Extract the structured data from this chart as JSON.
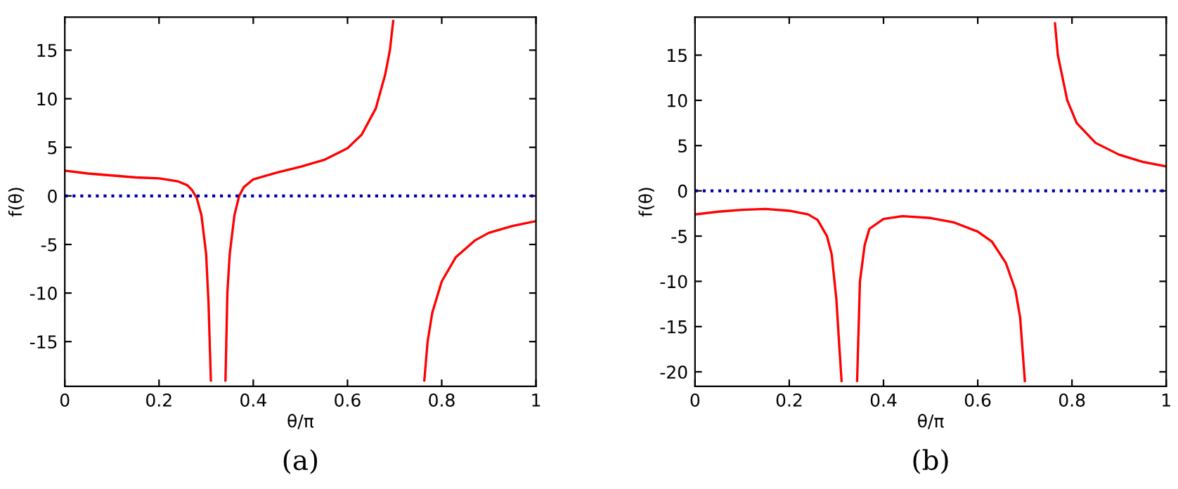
{
  "chart_data": [
    {
      "type": "line",
      "xlabel": "θ/π",
      "ylabel": "f(θ)",
      "annotations": [
        "(a)"
      ],
      "xlim": [
        0,
        1
      ],
      "ylim": [
        -19.6,
        18.4
      ],
      "xticks": [
        0,
        0.2,
        0.4,
        0.6,
        0.8,
        1
      ],
      "yticks": [
        -15,
        -10,
        -5,
        0,
        5,
        10,
        15
      ],
      "grid": false,
      "legend": false,
      "line_style": "solid",
      "ref_lines": [
        {
          "axis": "y",
          "value": 0,
          "color": "#0000aa",
          "line_style": "dotted"
        }
      ],
      "series": [
        {
          "color": "#ff0000",
          "x": [
            0,
            0.05,
            0.1,
            0.15,
            0.2,
            0.24,
            0.26,
            0.27,
            0.28,
            0.29,
            0.3,
            0.305,
            0.31
          ],
          "values": [
            2.6,
            2.3,
            2.1,
            1.9,
            1.8,
            1.5,
            1.1,
            0.6,
            -0.2,
            -2,
            -6,
            -11,
            -19
          ]
        },
        {
          "color": "#ff0000",
          "x": [
            0.341,
            0.345,
            0.35,
            0.36,
            0.37,
            0.38,
            0.4,
            0.45,
            0.5,
            0.55,
            0.6,
            0.63,
            0.66,
            0.68,
            0.69,
            0.697
          ],
          "values": [
            -19,
            -10,
            -6,
            -2,
            0,
            0.9,
            1.7,
            2.4,
            3.0,
            3.7,
            4.9,
            6.3,
            9,
            12.5,
            15,
            18
          ]
        },
        {
          "color": "#ff0000",
          "x": [
            0.763,
            0.77,
            0.78,
            0.8,
            0.83,
            0.87,
            0.9,
            0.95,
            1
          ],
          "values": [
            -19,
            -15,
            -12,
            -8.8,
            -6.3,
            -4.6,
            -3.8,
            -3.1,
            -2.6
          ]
        }
      ]
    },
    {
      "type": "line",
      "xlabel": "θ/π",
      "ylabel": "f(θ)",
      "annotations": [
        "(b)"
      ],
      "xlim": [
        0,
        1
      ],
      "ylim": [
        -21.6,
        19.2
      ],
      "xticks": [
        0,
        0.2,
        0.4,
        0.6,
        0.8,
        1
      ],
      "yticks": [
        -20,
        -15,
        -10,
        -5,
        0,
        5,
        10,
        15
      ],
      "grid": false,
      "legend": false,
      "line_style": "solid",
      "ref_lines": [
        {
          "axis": "y",
          "value": 0,
          "color": "#0000aa",
          "line_style": "dotted"
        }
      ],
      "series": [
        {
          "color": "#ff0000",
          "x": [
            0,
            0.05,
            0.1,
            0.15,
            0.2,
            0.24,
            0.26,
            0.28,
            0.29,
            0.3,
            0.306,
            0.311
          ],
          "values": [
            -2.6,
            -2.3,
            -2.1,
            -2.0,
            -2.2,
            -2.6,
            -3.2,
            -5,
            -7,
            -12,
            -17,
            -21
          ]
        },
        {
          "color": "#ff0000",
          "x": [
            0.344,
            0.35,
            0.36,
            0.37,
            0.4,
            0.44,
            0.5,
            0.55,
            0.6,
            0.63,
            0.66,
            0.68,
            0.69,
            0.7
          ],
          "values": [
            -21,
            -10,
            -6,
            -4.2,
            -3.1,
            -2.8,
            -3.0,
            -3.5,
            -4.5,
            -5.6,
            -8,
            -11,
            -14,
            -21
          ]
        },
        {
          "color": "#ff0000",
          "x": [
            0.764,
            0.77,
            0.79,
            0.81,
            0.85,
            0.9,
            0.95,
            1
          ],
          "values": [
            18.5,
            15,
            10,
            7.5,
            5.3,
            4,
            3.2,
            2.7
          ]
        }
      ]
    }
  ]
}
